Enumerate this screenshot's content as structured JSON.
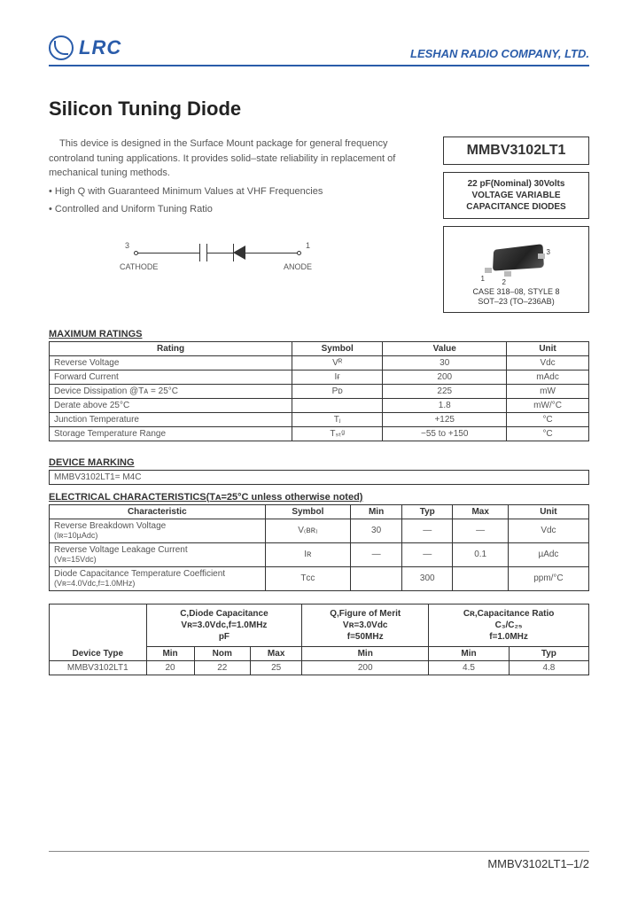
{
  "header": {
    "logo_text": "LRC",
    "company": "LESHAN RADIO COMPANY, LTD."
  },
  "title": "Silicon Tuning Diode",
  "intro": {
    "para": "This device is designed in the Surface Mount package for general frequency controland tuning applications. It provides solid–state reliability in replacement of mechanical tuning methods.",
    "b1": "• High Q with Guaranteed Minimum Values at VHF Frequencies",
    "b2": "• Controlled and Uniform Tuning Ratio"
  },
  "schematic": {
    "pin3": "3",
    "cathode": "CATHODE",
    "pin1": "1",
    "anode": "ANODE"
  },
  "side": {
    "part": "MMBV3102LT1",
    "spec_l1": "22 pF(Nominal) 30Volts",
    "spec_l2": "VOLTAGE VARIABLE",
    "spec_l3": "CAPACITANCE DIODES",
    "pkg_l1": "CASE 318–08, STYLE 8",
    "pkg_l2": "SOT–23 (TO–236AB)",
    "pin_1": "1",
    "pin_2": "2",
    "pin_3": "3"
  },
  "max": {
    "title": "MAXIMUM RATINGS",
    "h1": "Rating",
    "h2": "Symbol",
    "h3": "Value",
    "h4": "Unit",
    "rows": [
      {
        "r": "Reverse Voltage",
        "s": "Vᴿ",
        "v": "30",
        "u": "Vdc"
      },
      {
        "r": "Forward Current",
        "s": "Iғ",
        "v": "200",
        "u": "mAdc"
      },
      {
        "r": "Device Dissipation @Tᴀ = 25°C",
        "s": "Pᴅ",
        "v": "225",
        "u": "mW"
      },
      {
        "r": "Derate above 25°C",
        "s": "",
        "v": "1.8",
        "u": "mW/°C"
      },
      {
        "r": "Junction Temperature",
        "s": "Tⱼ",
        "v": "+125",
        "u": "°C"
      },
      {
        "r": "Storage Temperature Range",
        "s": "Tₛₜᵍ",
        "v": "−55 to +150",
        "u": "°C"
      }
    ]
  },
  "marking": {
    "title": "DEVICE MARKING",
    "value": "MMBV3102LT1= M4C"
  },
  "elec": {
    "title": "ELECTRICAL CHARACTERISTICS(Tᴀ=25°C unless otherwise noted)",
    "h1": "Characteristic",
    "h2": "Symbol",
    "h3": "Min",
    "h4": "Typ",
    "h5": "Max",
    "h6": "Unit",
    "rows": [
      {
        "c": "Reverse Breakdown Voltage",
        "cond": "(Iʀ=10µAdc)",
        "s": "V₍ʙʀ₎",
        "min": "30",
        "typ": "—",
        "max": "—",
        "u": "Vdc"
      },
      {
        "c": "Reverse Voltage Leakage Current",
        "cond": "(Vʀ=15Vdc)",
        "s": "Iʀ",
        "min": "—",
        "typ": "—",
        "max": "0.1",
        "u": "µAdc"
      },
      {
        "c": "Diode Capacitance Temperature Coefficient",
        "cond": "(Vʀ=4.0Vdc,f=1.0MHz)",
        "s": "Tᴄᴄ",
        "min": "",
        "typ": "300",
        "max": "",
        "u": "ppm/°C"
      }
    ]
  },
  "params": {
    "h_dev": "Device Type",
    "h_c": "C,Diode Capacitance\nVʀ=3.0Vdc,f=1.0MHz\npF",
    "h_q": "Q,Figure of Merit\nVʀ=3.0Vdc\nf=50MHz",
    "h_cr": "Cʀ,Capacitance Ratio\nC₃/C₂₅\nf=1.0MHz",
    "sub_min": "Min",
    "sub_nom": "Nom",
    "sub_max": "Max",
    "sub_typ": "Typ",
    "row": {
      "dev": "MMBV3102LT1",
      "cmin": "20",
      "cnom": "22",
      "cmax": "25",
      "qmin": "200",
      "crmin": "4.5",
      "crtyp": "4.8"
    }
  },
  "footer": "MMBV3102LT1–1/2"
}
